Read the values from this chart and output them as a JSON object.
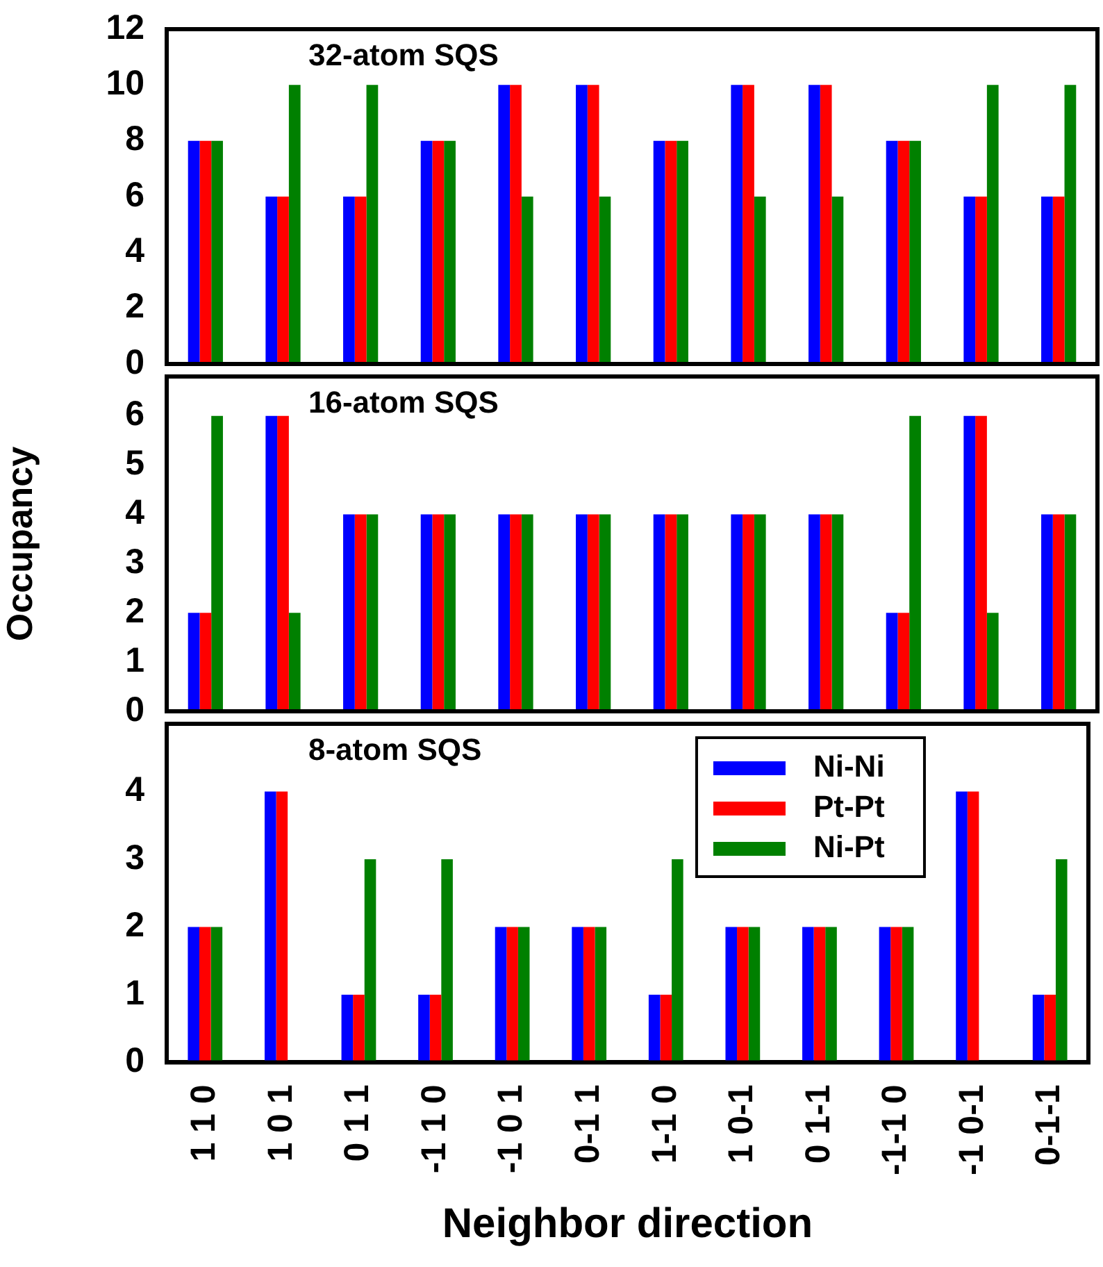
{
  "chart_data": [
    {
      "type": "bar",
      "title": "32-atom SQS",
      "categories": [
        null,
        null,
        null,
        null,
        null,
        null,
        null,
        null,
        null,
        null,
        null,
        null
      ],
      "tick_labels": "y",
      "ylim": [
        0,
        12
      ],
      "yticks": [
        0,
        2,
        4,
        6,
        8,
        10,
        12
      ],
      "series": [
        {
          "color": "#0000ff",
          "values": [
            8,
            6,
            6,
            8,
            10,
            10,
            8,
            10,
            10,
            8,
            6,
            6
          ]
        },
        {
          "color": "#ff0000",
          "values": [
            8,
            6,
            6,
            8,
            10,
            10,
            8,
            10,
            10,
            8,
            6,
            6
          ]
        },
        {
          "color": "#008000",
          "values": [
            8,
            10,
            10,
            8,
            6,
            6,
            8,
            6,
            6,
            8,
            10,
            10
          ]
        }
      ]
    },
    {
      "type": "bar",
      "title": "16-atom SQS",
      "ylabel": "Occupancy",
      "categories": [
        null,
        null,
        null,
        null,
        null,
        null,
        null,
        null,
        null,
        null,
        null,
        null
      ],
      "tick_labels": "y",
      "ylim": [
        0,
        6.8
      ],
      "yticks": [
        0,
        1,
        2,
        3,
        4,
        5,
        6
      ],
      "series": [
        {
          "color": "#0000ff",
          "values": [
            2,
            6,
            4,
            4,
            4,
            4,
            4,
            4,
            4,
            2,
            6,
            4
          ]
        },
        {
          "color": "#ff0000",
          "values": [
            2,
            6,
            4,
            4,
            4,
            4,
            4,
            4,
            4,
            2,
            6,
            4
          ]
        },
        {
          "color": "#008000",
          "values": [
            6,
            2,
            4,
            4,
            4,
            4,
            4,
            4,
            4,
            6,
            2,
            4
          ]
        }
      ]
    },
    {
      "type": "bar",
      "title": "8-atom SQS",
      "xlabel": "Neighbor direction",
      "categories": [
        "1 1 0",
        "1 0 1",
        "0 1 1",
        "-1 1 0",
        "-1 0 1",
        "0-1 1",
        "1-1 0",
        "1 0-1",
        "0 1-1",
        "-1-1 0",
        "-1 0-1",
        "0-1-1"
      ],
      "ylim": [
        0,
        5
      ],
      "yticks": [
        0,
        1,
        2,
        3,
        4
      ],
      "legend": "top right",
      "series": [
        {
          "name": "Ni-Ni",
          "color": "#0000ff",
          "values": [
            2,
            4,
            1,
            1,
            2,
            2,
            1,
            2,
            2,
            2,
            4,
            1
          ]
        },
        {
          "name": "Pt-Pt",
          "color": "#ff0000",
          "values": [
            2,
            4,
            1,
            1,
            2,
            2,
            1,
            2,
            2,
            2,
            4,
            1
          ]
        },
        {
          "name": "Ni-Pt",
          "color": "#008000",
          "values": [
            2,
            0,
            3,
            3,
            2,
            2,
            3,
            2,
            2,
            2,
            0,
            3
          ]
        }
      ]
    }
  ]
}
